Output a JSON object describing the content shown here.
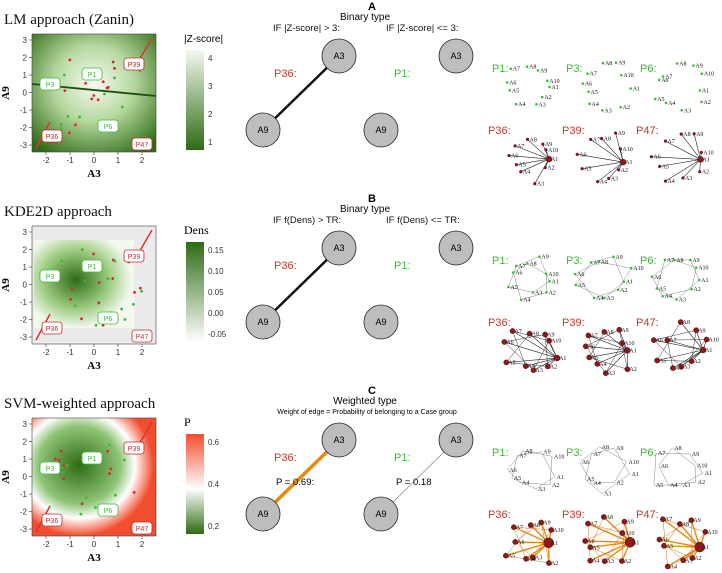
{
  "panels": [
    {
      "letter": "A",
      "method_title": "LM approach (Zanin)",
      "x_axis_label": "A3",
      "y_axis_label": "A9",
      "x_ticks": [
        "-2",
        "-1",
        "0",
        "1",
        "2"
      ],
      "y_ticks": [
        "3",
        "2",
        "1",
        "0",
        "-1",
        "-2",
        "-3"
      ],
      "point_labels": [
        "P3",
        "P1",
        "P6",
        "P39",
        "P36",
        "P47"
      ],
      "legend_title": "|Z-score|",
      "legend_ticks": [
        "4",
        "3",
        "2",
        "1"
      ],
      "scheme_title": "Binary type",
      "scheme_subtitle": "",
      "condition_left": "IF |Z-score| > 3:",
      "condition_right": "IF |Z-score| <= 3:",
      "case_label": "P36:",
      "control_label": "P1:",
      "edge_value_left": "",
      "edge_value_right": "",
      "node_top": "A3",
      "node_bottom": "A9",
      "net_controls": [
        "P1:",
        "P3:",
        "P6:"
      ],
      "net_cases": [
        "P36:",
        "P39:",
        "P47:"
      ]
    },
    {
      "letter": "B",
      "method_title": "KDE2D approach",
      "x_axis_label": "A3",
      "y_axis_label": "A9",
      "x_ticks": [
        "-2",
        "-1",
        "0",
        "1",
        "2"
      ],
      "y_ticks": [
        "3",
        "2",
        "1",
        "0",
        "-1",
        "-2",
        "-3"
      ],
      "point_labels": [
        "P3",
        "P1",
        "P6",
        "P39",
        "P36",
        "P47"
      ],
      "legend_title": "Dens",
      "legend_ticks": [
        "0.15",
        "0.10",
        "0.05",
        "0.00",
        "-0.05"
      ],
      "scheme_title": "Binary type",
      "scheme_subtitle": "",
      "condition_left": "IF f(Dens) > TR:",
      "condition_right": "IF f(Dens) <= TR:",
      "case_label": "P36:",
      "control_label": "P1:",
      "edge_value_left": "",
      "edge_value_right": "",
      "node_top": "A3",
      "node_bottom": "A9",
      "net_controls": [
        "P1:",
        "P3:",
        "P6:"
      ],
      "net_cases": [
        "P36:",
        "P39:",
        "P47:"
      ]
    },
    {
      "letter": "C",
      "method_title": "SVM-weighted approach",
      "x_axis_label": "A3",
      "y_axis_label": "A9",
      "x_ticks": [
        "-2",
        "-1",
        "0",
        "1",
        "2"
      ],
      "y_ticks": [
        "3",
        "2",
        "1",
        "0",
        "-1",
        "-2",
        "-3"
      ],
      "point_labels": [
        "P3",
        "P1",
        "P6",
        "P39",
        "P36",
        "P47"
      ],
      "legend_title": "P",
      "legend_ticks": [
        "0.6",
        "0.4",
        "0.2"
      ],
      "scheme_title": "Weighted type",
      "scheme_subtitle": "Weight of edge = Probability of belonging to a Case group",
      "condition_left": "",
      "condition_right": "",
      "case_label": "P36:",
      "control_label": "P1:",
      "edge_value_left": "P = 0.69:",
      "edge_value_right": "P = 0.18",
      "node_top": "A3",
      "node_bottom": "A9",
      "net_controls": [
        "P1:",
        "P3:",
        "P6:"
      ],
      "net_cases": [
        "P36:",
        "P39:",
        "P47:"
      ]
    }
  ],
  "network_node_names": [
    "A1",
    "A2",
    "A3",
    "A4",
    "A5",
    "A6",
    "A7",
    "A8",
    "A9",
    "A10"
  ],
  "colors": {
    "control_green": "#3cb93c",
    "case_red": "#c0392b",
    "node_gray": "#bdbdbd",
    "lm_dark": "#2f6b1a",
    "svm_red": "#f25c3c",
    "weighted_edge": "#e8890c"
  }
}
